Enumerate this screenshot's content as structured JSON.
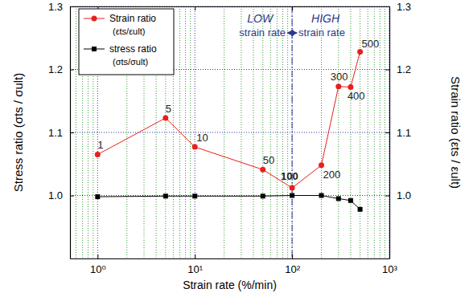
{
  "chart_data": {
    "type": "line",
    "log": "x",
    "grid": true,
    "legend": "upper left",
    "x": [
      1,
      5,
      10,
      50,
      100,
      200,
      300,
      400,
      500
    ],
    "xlim": [
      0.52,
      1000
    ],
    "xticks": [
      {
        "value": 1,
        "label": "10⁰"
      },
      {
        "value": 10,
        "label": "10¹"
      },
      {
        "value": 100,
        "label": "10²"
      },
      {
        "value": 1000,
        "label": "10³"
      }
    ],
    "ylim": [
      0.9,
      1.3
    ],
    "yticks": [
      {
        "value": 1,
        "label": "1.0"
      },
      {
        "value": 1.1,
        "label": "1.1"
      },
      {
        "value": 1.2,
        "label": "1.2"
      },
      {
        "value": 1.3,
        "label": "1.3"
      }
    ],
    "y2lim": [
      0.9,
      1.3
    ],
    "y2ticks": [
      {
        "value": 1,
        "label": "1.0"
      },
      {
        "value": 1.1,
        "label": "1.1"
      },
      {
        "value": 1.2,
        "label": "1.2"
      },
      {
        "value": 1.3,
        "label": "1.3"
      }
    ],
    "x_label": "Strain rate (%/min)",
    "y_label": "Stress ratio (σts / σult)",
    "y2_label": "Strain ratio (εts / εult)",
    "series": [
      {
        "name": "Strain ratio",
        "legend_note": "(εts/εult)",
        "color": "#e8201c",
        "marker": "circle",
        "axis": "y2",
        "values": [
          1.065,
          1.123,
          1.077,
          1.041,
          1.012,
          1.048,
          1.173,
          1.172,
          1.228
        ]
      },
      {
        "name": "stress ratio",
        "legend_note": "(σts/σult)",
        "color": "#000000",
        "marker": "square",
        "axis": "y",
        "values": [
          0.998,
          0.999,
          0.999,
          0.999,
          1.0,
          1.0,
          0.995,
          0.992,
          0.978
        ]
      }
    ],
    "annotations": [
      "1",
      "5",
      "10",
      "50",
      "100",
      "200",
      "300",
      "400",
      "500"
    ],
    "region_labels": {
      "x": 100,
      "left": [
        "LOW",
        "strain rate"
      ],
      "right": [
        "HIGH",
        "strain rate"
      ]
    }
  }
}
